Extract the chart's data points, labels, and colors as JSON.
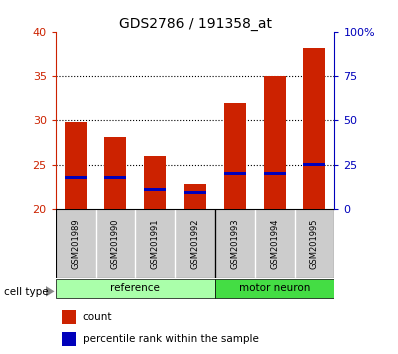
{
  "title": "GDS2786 / 191358_at",
  "samples": [
    "GSM201989",
    "GSM201990",
    "GSM201991",
    "GSM201992",
    "GSM201993",
    "GSM201994",
    "GSM201995"
  ],
  "count_values": [
    29.8,
    28.1,
    26.0,
    22.8,
    32.0,
    35.0,
    38.2
  ],
  "percentile_values": [
    23.5,
    23.5,
    22.2,
    21.8,
    24.0,
    24.0,
    25.0
  ],
  "groups": [
    {
      "label": "reference",
      "start": 0,
      "end": 4,
      "color": "#aaffaa"
    },
    {
      "label": "motor neuron",
      "start": 4,
      "end": 7,
      "color": "#44dd44"
    }
  ],
  "ylim_left": [
    20,
    40
  ],
  "yticks_left": [
    20,
    25,
    30,
    35,
    40
  ],
  "ylim_right": [
    0,
    100
  ],
  "yticks_right": [
    0,
    25,
    50,
    75,
    100
  ],
  "bar_color": "#cc2200",
  "percentile_color": "#0000bb",
  "bar_width": 0.55,
  "title_fontsize": 10,
  "axis_color_left": "#cc2200",
  "axis_color_right": "#0000bb",
  "background_color": "#ffffff",
  "label_area_bg": "#cccccc",
  "cell_type_label": "cell type",
  "legend_count": "count",
  "legend_percentile": "percentile rank within the sample"
}
